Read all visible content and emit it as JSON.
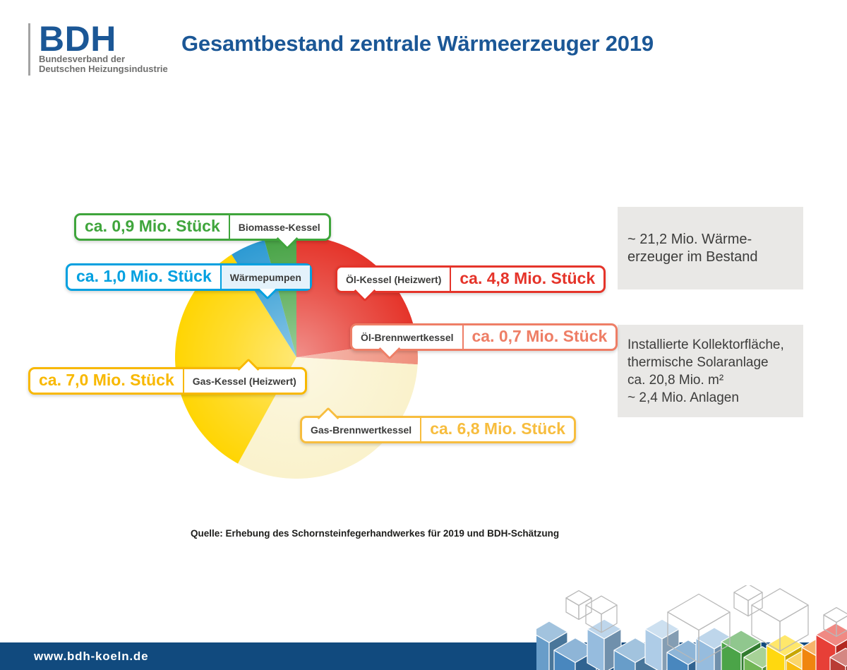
{
  "header": {
    "logo": {
      "acronym": "BDH",
      "subtitle_line1": "Bundesverband der",
      "subtitle_line2": "Deutschen Heizungsindustrie"
    },
    "title": "Gesamtbestand zentrale Wärmeerzeuger 2019"
  },
  "chart_data": {
    "type": "pie",
    "title": "Gesamtbestand zentrale Wärmeerzeuger 2019",
    "unit": "Mio. Stück",
    "total": 21.2,
    "direction": "clockwise",
    "start_angle_deg": 0,
    "slices": [
      {
        "label": "Öl-Kessel (Heizwert)",
        "value": 4.8,
        "value_label": "ca. 4,8 Mio. Stück",
        "fill": "#e5342a",
        "accent": "#e5342a"
      },
      {
        "label": "Öl-Brennwertkessel",
        "value": 0.7,
        "value_label": "ca. 0,7 Mio. Stück",
        "fill": "#ef8f7c",
        "accent": "#ee7e66"
      },
      {
        "label": "Gas-Brennwertkessel",
        "value": 6.8,
        "value_label": "ca. 6,8 Mio. Stück",
        "fill": "#faf2cc",
        "accent": "#f7bd3e"
      },
      {
        "label": "Gas-Kessel (Heizwert)",
        "value": 7.0,
        "value_label": "ca. 7,0 Mio. Stück",
        "fill": "#ffd503",
        "accent": "#f8b800"
      },
      {
        "label": "Wärmepumpen",
        "value": 1.0,
        "value_label": "ca. 1,0 Mio. Stück",
        "fill": "#2d9ad3",
        "accent": "#00a0e0"
      },
      {
        "label": "Biomasse-Kessel",
        "value": 0.9,
        "value_label": "ca. 0,9 Mio. Stück",
        "fill": "#47a345",
        "accent": "#3fa53c"
      }
    ]
  },
  "info_boxes": [
    {
      "lines": [
        "~ 21,2 Mio. Wärme-",
        "erzeuger im Bestand"
      ]
    },
    {
      "lines": [
        "Installierte Kollektorfläche,",
        "thermische Solaranlage",
        "ca. 20,8 Mio. m²",
        "~ 2,4 Mio. Anlagen"
      ]
    }
  ],
  "source": "Quelle: Erhebung des Schornsteinfegerhandwerkes für 2019 und BDH-Schätzung",
  "footer": {
    "url": "www.bdh-koeln.de"
  },
  "colors": {
    "brand_blue": "#1b5796",
    "footer_bar": "#114a7e",
    "info_box_bg": "#e9e8e6",
    "text_dark": "#3c3c3b",
    "logo_gray": "#6f6f6e"
  },
  "decoration": {
    "cube_colors": [
      "#8fb8dc",
      "#5e97c6",
      "#3d7fba",
      "#a9c9e5",
      "#3f9e3c",
      "#68b14b",
      "#ffd500",
      "#f8b800",
      "#ef7d00",
      "#e5332a",
      "#b43027"
    ],
    "wire_color": "#b9b9b9"
  }
}
